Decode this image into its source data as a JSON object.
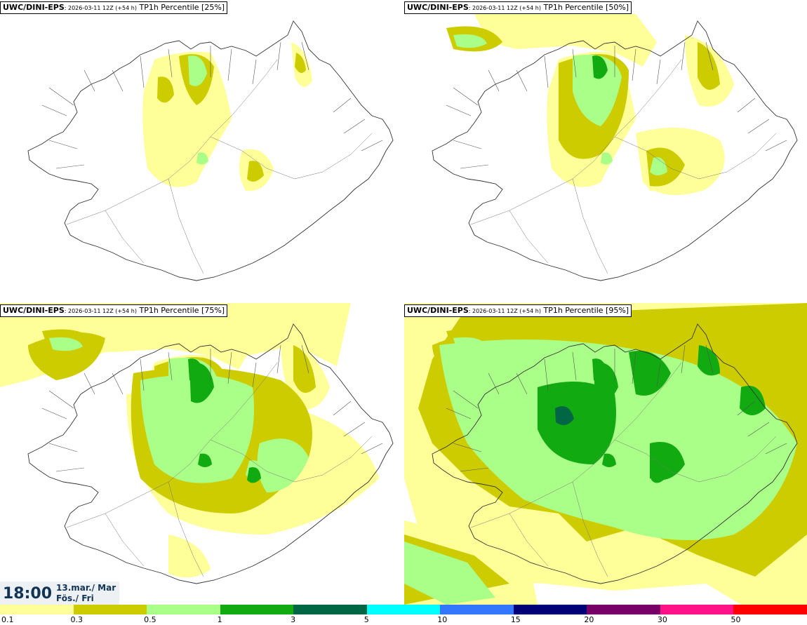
{
  "panels": [
    {
      "model": "UWC/DINI-EPS",
      "run": ": 2026-03-11 12Z (+54 h)",
      "field": "TP1h Percentile [25%]",
      "intensity": 1
    },
    {
      "model": "UWC/DINI-EPS",
      "run": ": 2026-03-11 12Z (+54 h)",
      "field": "TP1h Percentile [50%]",
      "intensity": 2
    },
    {
      "model": "UWC/DINI-EPS",
      "run": ": 2026-03-11 12Z (+54 h)",
      "field": "TP1h Percentile [75%]",
      "intensity": 3
    },
    {
      "model": "UWC/DINI-EPS",
      "run": ": 2026-03-11 12Z (+54 h)",
      "field": "TP1h Percentile [95%]",
      "intensity": 4
    }
  ],
  "valid_time": {
    "clock": "18:00",
    "date_line1": "13.mar./ Mar",
    "date_line2": "Fös./ Fri"
  },
  "colorbar": {
    "colors": [
      "#ffff99",
      "#cccc00",
      "#aaff88",
      "#11aa11",
      "#006644",
      "#00ffff",
      "#3377ff",
      "#000077",
      "#770066",
      "#ff1188",
      "#ff0000"
    ],
    "labels": [
      "0.1",
      "0.3",
      "0.5",
      "1",
      "3",
      "5",
      "10",
      "15",
      "20",
      "30",
      "50"
    ]
  }
}
